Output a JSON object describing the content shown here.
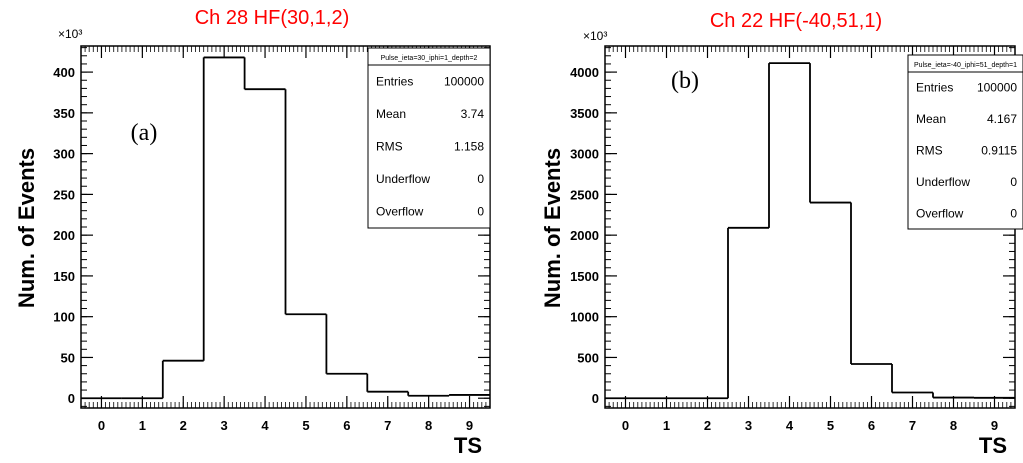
{
  "chart_data": [
    {
      "type": "bar",
      "title": "Ch 28 HF(30,1,2)",
      "panel_label": "(a)",
      "xlabel": "TS",
      "ylabel": "Num. of Events",
      "y_multiplier": "×10³",
      "categories": [
        0,
        1,
        2,
        3,
        4,
        5,
        6,
        7,
        8,
        9
      ],
      "x_ticks": [
        "0",
        "1",
        "2",
        "3",
        "4",
        "5",
        "6",
        "7",
        "8",
        "9"
      ],
      "values": [
        0,
        0,
        46,
        418,
        379,
        103,
        30,
        8,
        3,
        4
      ],
      "y_ticks": [
        "0",
        "50",
        "100",
        "150",
        "200",
        "250",
        "300",
        "350",
        "400"
      ],
      "ylim": [
        -12,
        432
      ],
      "xlim": [
        -0.5,
        9.5
      ],
      "histogram": true,
      "color": "#000000",
      "title_color": "#ff0000",
      "stats_box": {
        "header": "Pulse_ieta=30_iphi=1_depth=2",
        "rows": [
          {
            "label": "Entries",
            "value": "100000"
          },
          {
            "label": "Mean",
            "value": "3.74"
          },
          {
            "label": "RMS",
            "value": "1.158"
          },
          {
            "label": "Underflow",
            "value": "0"
          },
          {
            "label": "Overflow",
            "value": "0"
          }
        ]
      }
    },
    {
      "type": "bar",
      "title": "Ch 22 HF(-40,51,1)",
      "panel_label": "(b)",
      "xlabel": "TS",
      "ylabel": "Num. of Events",
      "y_multiplier": "×10³",
      "categories": [
        0,
        1,
        2,
        3,
        4,
        5,
        6,
        7,
        8,
        9
      ],
      "x_ticks": [
        "0",
        "1",
        "2",
        "3",
        "4",
        "5",
        "6",
        "7",
        "8",
        "9"
      ],
      "values": [
        0,
        0,
        0,
        2090,
        4110,
        2400,
        420,
        70,
        8,
        5
      ],
      "y_ticks": [
        "0",
        "500",
        "1000",
        "1500",
        "2000",
        "2500",
        "3000",
        "3500",
        "4000"
      ],
      "ylim": [
        -120,
        4320
      ],
      "xlim": [
        -0.5,
        9.5
      ],
      "histogram": true,
      "color": "#000000",
      "title_color": "#ff0000",
      "stats_box": {
        "header": "Pulse_ieta=-40_iphi=51_depth=1",
        "rows": [
          {
            "label": "Entries",
            "value": "100000"
          },
          {
            "label": "Mean",
            "value": "4.167"
          },
          {
            "label": "RMS",
            "value": "0.9115"
          },
          {
            "label": "Underflow",
            "value": "0"
          },
          {
            "label": "Overflow",
            "value": "0"
          }
        ]
      }
    }
  ]
}
